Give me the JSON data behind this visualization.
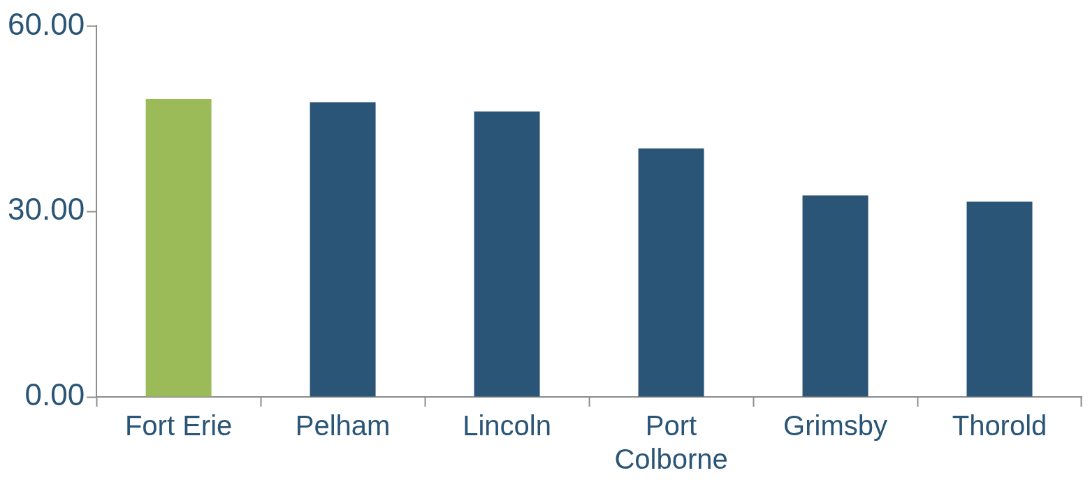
{
  "chart_data": {
    "type": "bar",
    "categories": [
      "Fort Erie",
      "Pelham",
      "Lincoln",
      "Port Colborne",
      "Grimsby",
      "Thorold"
    ],
    "values": [
      48.2,
      47.7,
      46.2,
      40.2,
      32.6,
      31.6
    ],
    "colors": [
      "#9bbb59",
      "#2a5576",
      "#2a5576",
      "#2a5576",
      "#2a5576",
      "#2a5576"
    ],
    "ylim": [
      0,
      60
    ],
    "yticks": [
      {
        "value": 0,
        "label": "0.00"
      },
      {
        "value": 30,
        "label": "30.00"
      },
      {
        "value": 60,
        "label": "60.00"
      }
    ],
    "grid": false,
    "legend": false
  }
}
